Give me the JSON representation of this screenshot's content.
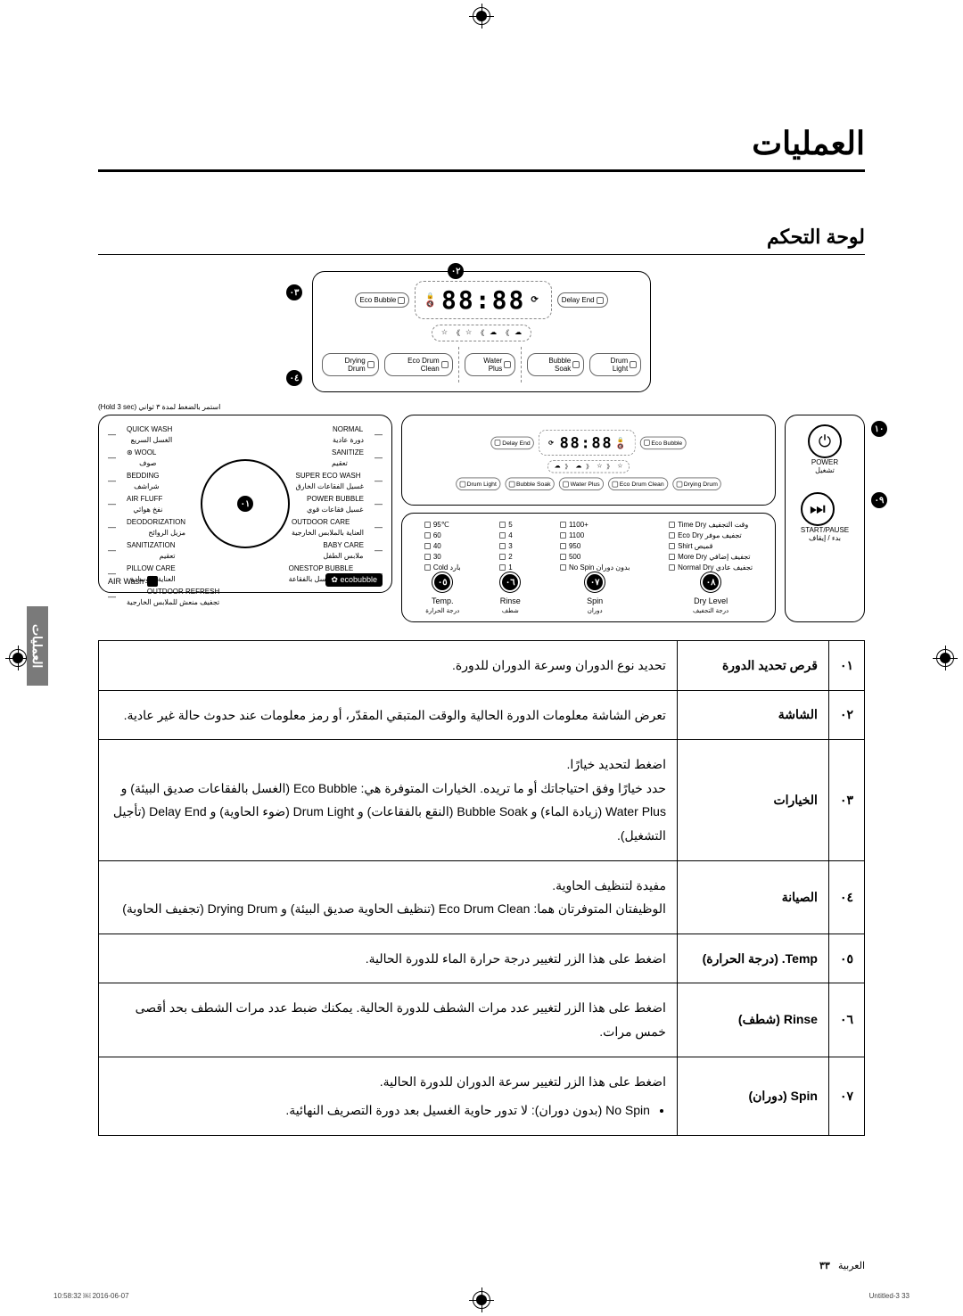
{
  "page": {
    "main_title": "العمليات",
    "section_title": "لوحة التحكم",
    "page_num": "٣٣",
    "page_lang": "العربية",
    "side_tab": "العمليات",
    "meta_left": "Untitled-3   33",
    "meta_right": "2016-06-07   ￼ 10:58:32"
  },
  "callouts": {
    "c1": "٠١",
    "c2": "٠٢",
    "c3": "٠٣",
    "c4": "٠٤",
    "c5": "٠٥",
    "c6": "٠٦",
    "c7": "٠٧",
    "c8": "٠٨",
    "c9": "٠٩",
    "c10": "١٠"
  },
  "display": {
    "time": "88:88",
    "delay_end": "Delay End",
    "eco_bubble": "Eco Bubble",
    "drum_light": "Drum Light",
    "bubble_soak": "Bubble Soak",
    "water_plus": "Water Plus",
    "eco_drum_clean": "Eco Drum Clean",
    "drying_drum": "Drying Drum",
    "hold_note": "استمر بالضغط لمدة ٣ ثواني (Hold 3 sec)"
  },
  "programs_left": [
    {
      "en": "NORMAL",
      "ar": "دورة عادية"
    },
    {
      "en": "SANITIZE",
      "ar": "تعقيم"
    },
    {
      "en": "SUPER ECO WASH",
      "ar": "غسيل الفقاعات الخارق"
    },
    {
      "en": "POWER BUBBLE",
      "ar": "غسيل فقاعات قوي"
    },
    {
      "en": "OUTDOOR CARE",
      "ar": "العناية بالملابس الخارجية"
    },
    {
      "en": "BABY CARE",
      "ar": "ملابس الطفل"
    },
    {
      "en": "ONESTOP BUBBLE",
      "ar": "خيار واحد للغسل بالفقاعة"
    }
  ],
  "programs_right": [
    {
      "en": "QUICK WASH",
      "ar": "الغسل السريع"
    },
    {
      "en": "WOOL",
      "ar": "صوف"
    },
    {
      "en": "BEDDING",
      "ar": "شراشف"
    },
    {
      "en": "AIR FLUFF",
      "ar": "نفخ هوائي"
    },
    {
      "en": "DEODORIZATION",
      "ar": "مزيل الروائح"
    },
    {
      "en": "SANITIZATION",
      "ar": "تعقيم"
    },
    {
      "en": "PILLOW CARE",
      "ar": "العناية بالوسادة"
    },
    {
      "en": "OUTDOOR REFRESH",
      "ar": "تجفيف منعش للملابس الخارجية"
    }
  ],
  "eco_logo": "ecobubble",
  "airwash": "AIR Wash",
  "options": {
    "temp_label": "Temp.",
    "temp_ar": "درجة الحرارة",
    "rinse_label": "Rinse",
    "rinse_ar": "شطف",
    "spin_label": "Spin",
    "spin_ar": "دوران",
    "dry_label": "Dry Level",
    "dry_ar": "درجة التجفيف",
    "temps": [
      "95℃",
      "60",
      "40",
      "30",
      "Cold بارد"
    ],
    "rinses": [
      "5",
      "4",
      "3",
      "2",
      "1"
    ],
    "spins": [
      "1100+",
      "1100",
      "950",
      "500",
      "No Spin بدون دوران"
    ],
    "drys": [
      "Time Dry وقت التجفيف",
      "Eco Dry تجفيف موفر",
      "Shirt قميص",
      "More Dry تجفيف إضافي",
      "Normal Dry تجفيف عادي"
    ],
    "power": "POWER",
    "power_ar": "تشغيل",
    "start_pause": "START/PAUSE",
    "start_pause_ar": "بدء / إيقاف"
  },
  "table": [
    {
      "num": "٠١",
      "name": "قرص تحديد الدورة",
      "desc": "تحديد نوع الدوران وسرعة الدوران للدورة."
    },
    {
      "num": "٠٢",
      "name": "الشاشة",
      "desc": "تعرض الشاشة معلومات الدورة الحالية والوقت المتبقي المقدّر، أو رمز معلومات عند حدوث حالة غير عادية."
    },
    {
      "num": "٠٣",
      "name": "الخيارات",
      "desc": "اضغط لتحديد خيارًا.\nحدد خيارًا وفق احتياجاتك أو ما تريده. الخيارات المتوفرة هي: Eco Bubble (الغسل بالفقاعات صديق البيئة) و Water Plus (زيادة الماء) و Bubble Soak (النقع بالفقاعات) و Drum Light (ضوء الحاوية) و Delay End (تأجيل التشغيل)."
    },
    {
      "num": "٠٤",
      "name": "الصيانة",
      "desc": "مفيدة لتنظيف الحاوية.\nالوظيفتان المتوفرتان هما: Eco Drum Clean (تنظيف الحاوية صديق البيئة) و Drying Drum (تجفيف الحاوية)"
    },
    {
      "num": "٠٥",
      "name": "Temp. (درجة الحرارة)",
      "desc": "اضغط على هذا الزر لتغيير درجة حرارة الماء للدورة الحالية."
    },
    {
      "num": "٠٦",
      "name": "Rinse (شطف)",
      "desc": "اضغط على هذا الزر لتغيير عدد مرات الشطف للدورة الحالية. يمكنك ضبط عدد مرات الشطف بحد أقصى خمس مرات."
    },
    {
      "num": "٠٧",
      "name": "Spin (دوران)",
      "desc": "اضغط على هذا الزر لتغيير سرعة الدوران للدورة الحالية.",
      "bullet": "No Spin (بدون دوران): لا تدور حاوية الغسيل بعد دورة التصريف النهائية."
    }
  ]
}
